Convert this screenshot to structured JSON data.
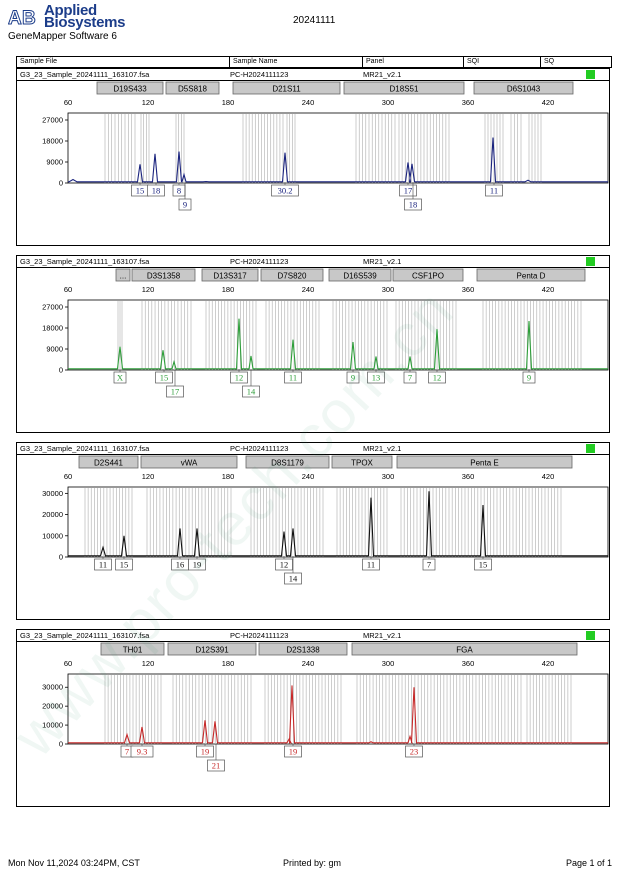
{
  "header": {
    "brand_line1": "Applied",
    "brand_line2": "Biosystems",
    "software": "GeneMapper Software 6",
    "date_title": "20241111",
    "columns": [
      "Sample File",
      "Sample Name",
      "Panel",
      "SQI",
      "SQ"
    ]
  },
  "footer": {
    "printed_at": "Mon Nov 11,2024 03:24PM, CST",
    "printed_by": "Printed by: gm",
    "page": "Page 1 of 1"
  },
  "watermark_text": "www.pro-tech.com.cn",
  "colors": {
    "blue": "#1a237e",
    "green": "#2e9e3a",
    "black": "#111111",
    "red": "#c62828",
    "sq": "#22cc22"
  },
  "panels": [
    {
      "sample_file": "G3_23_Sample_20241111_163107.fsa",
      "sample_name": "PC-H2024111123",
      "panel": "MR21_v2.1",
      "color": "blue",
      "loci": [
        {
          "name": "D19S433",
          "x0": 96,
          "x1": 162
        },
        {
          "name": "D5S818",
          "x0": 165,
          "x1": 218
        },
        {
          "name": "D21S11",
          "x0": 232,
          "x1": 339
        },
        {
          "name": "D18S51",
          "x0": 343,
          "x1": 463
        },
        {
          "name": "D6S1043",
          "x0": 473,
          "x1": 572
        }
      ],
      "x_ticks": [
        60,
        120,
        180,
        240,
        300,
        360,
        420
      ],
      "y_ticks": [
        "27000",
        "18000",
        "9000",
        "0"
      ],
      "y_max": 30000,
      "peaks": [
        {
          "x": 139,
          "h": 8000,
          "w": 2.5
        },
        {
          "x": 154,
          "h": 12500,
          "w": 2.5
        },
        {
          "x": 178,
          "h": 13500,
          "w": 2.5
        },
        {
          "x": 183,
          "h": 3600,
          "w": 2
        },
        {
          "x": 284,
          "h": 13000,
          "w": 2.5
        },
        {
          "x": 407,
          "h": 8800,
          "w": 2.5
        },
        {
          "x": 411,
          "h": 8200,
          "w": 2.5
        },
        {
          "x": 492,
          "h": 19500,
          "w": 2.5
        },
        {
          "x": 72,
          "h": 1500,
          "w": 4
        },
        {
          "x": 527,
          "h": 1200,
          "w": 3
        },
        {
          "x": 205,
          "h": 600,
          "w": 3
        }
      ],
      "labels": [
        {
          "text": "15",
          "x": 139,
          "row": 0
        },
        {
          "text": "18",
          "x": 155,
          "row": 0
        },
        {
          "text": "8",
          "x": 178,
          "row": 0
        },
        {
          "text": "9",
          "x": 184,
          "row": 1
        },
        {
          "text": "30.2",
          "x": 284,
          "row": 0
        },
        {
          "text": "17",
          "x": 407,
          "row": 0
        },
        {
          "text": "18",
          "x": 412,
          "row": 1
        },
        {
          "text": "11",
          "x": 493,
          "row": 0
        }
      ],
      "bins": [
        [
          104,
          134
        ],
        [
          140,
          148
        ],
        [
          175,
          183
        ],
        [
          242,
          282
        ],
        [
          286,
          294
        ],
        [
          355,
          394
        ],
        [
          398,
          448
        ],
        [
          484,
          502
        ],
        [
          510,
          520
        ],
        [
          528,
          540
        ]
      ]
    },
    {
      "sample_file": "G3_23_Sample_20241111_163107.fsa",
      "sample_name": "PC-H2024111123",
      "panel": "MR21_v2.1",
      "color": "green",
      "loci": [
        {
          "name": "...",
          "x0": 115,
          "x1": 129
        },
        {
          "name": "D3S1358",
          "x0": 131,
          "x1": 194
        },
        {
          "name": "D13S317",
          "x0": 201,
          "x1": 257
        },
        {
          "name": "D7S820",
          "x0": 260,
          "x1": 322
        },
        {
          "name": "D16S539",
          "x0": 328,
          "x1": 390
        },
        {
          "name": "CSF1PO",
          "x0": 392,
          "x1": 462
        },
        {
          "name": "Penta D",
          "x0": 476,
          "x1": 584
        }
      ],
      "x_ticks": [
        60,
        120,
        180,
        240,
        300,
        360,
        420
      ],
      "y_ticks": [
        "27000",
        "18000",
        "9000",
        "0"
      ],
      "y_max": 30000,
      "peaks": [
        {
          "x": 119,
          "h": 10000,
          "w": 2.5
        },
        {
          "x": 162,
          "h": 8500,
          "w": 2.5
        },
        {
          "x": 173,
          "h": 3500,
          "w": 2
        },
        {
          "x": 238,
          "h": 22000,
          "w": 2.5
        },
        {
          "x": 250,
          "h": 6000,
          "w": 2
        },
        {
          "x": 292,
          "h": 13000,
          "w": 2.5
        },
        {
          "x": 352,
          "h": 12000,
          "w": 2.5
        },
        {
          "x": 375,
          "h": 5800,
          "w": 2
        },
        {
          "x": 409,
          "h": 5800,
          "w": 2
        },
        {
          "x": 436,
          "h": 17500,
          "w": 2.5
        },
        {
          "x": 528,
          "h": 21000,
          "w": 2.5
        }
      ],
      "labels": [
        {
          "text": "X",
          "x": 119,
          "row": 0
        },
        {
          "text": "15",
          "x": 163,
          "row": 0
        },
        {
          "text": "17",
          "x": 174,
          "row": 1
        },
        {
          "text": "12",
          "x": 238,
          "row": 0
        },
        {
          "text": "14",
          "x": 250,
          "row": 1
        },
        {
          "text": "11",
          "x": 292,
          "row": 0
        },
        {
          "text": "9",
          "x": 352,
          "row": 0
        },
        {
          "text": "13",
          "x": 375,
          "row": 0
        },
        {
          "text": "7",
          "x": 409,
          "row": 0
        },
        {
          "text": "12",
          "x": 436,
          "row": 0
        },
        {
          "text": "9",
          "x": 528,
          "row": 0
        }
      ],
      "bins": [
        [
          117,
          121
        ],
        [
          141,
          190
        ],
        [
          205,
          255
        ],
        [
          265,
          318
        ],
        [
          332,
          386
        ],
        [
          395,
          455
        ],
        [
          482,
          580
        ]
      ]
    },
    {
      "sample_file": "G3_23_Sample_20241111_163107.fsa",
      "sample_name": "PC-H2024111123",
      "panel": "MR21_v2.1",
      "color": "black",
      "loci": [
        {
          "name": "D2S441",
          "x0": 78,
          "x1": 137
        },
        {
          "name": "vWA",
          "x0": 140,
          "x1": 236
        },
        {
          "name": "D8S1179",
          "x0": 245,
          "x1": 328
        },
        {
          "name": "TPOX",
          "x0": 331,
          "x1": 391
        },
        {
          "name": "Penta E",
          "x0": 396,
          "x1": 571
        }
      ],
      "x_ticks": [
        60,
        120,
        180,
        240,
        300,
        360,
        420
      ],
      "y_ticks": [
        "30000",
        "20000",
        "10000",
        "0"
      ],
      "y_max": 33000,
      "peaks": [
        {
          "x": 102,
          "h": 4500,
          "w": 2.5
        },
        {
          "x": 123,
          "h": 10000,
          "w": 2.5
        },
        {
          "x": 179,
          "h": 13500,
          "w": 2.5
        },
        {
          "x": 196,
          "h": 13500,
          "w": 2.5
        },
        {
          "x": 283,
          "h": 12000,
          "w": 2.5
        },
        {
          "x": 292,
          "h": 13500,
          "w": 2.5
        },
        {
          "x": 370,
          "h": 28000,
          "w": 2.5
        },
        {
          "x": 428,
          "h": 31000,
          "w": 2.5
        },
        {
          "x": 482,
          "h": 24500,
          "w": 2.5
        }
      ],
      "labels": [
        {
          "text": "11",
          "x": 102,
          "row": 0
        },
        {
          "text": "15",
          "x": 123,
          "row": 0
        },
        {
          "text": "16",
          "x": 179,
          "row": 0
        },
        {
          "text": "19",
          "x": 196,
          "row": 0
        },
        {
          "text": "12",
          "x": 283,
          "row": 0
        },
        {
          "text": "14",
          "x": 292,
          "row": 1
        },
        {
          "text": "11",
          "x": 370,
          "row": 0
        },
        {
          "text": "7",
          "x": 428,
          "row": 0
        },
        {
          "text": "15",
          "x": 482,
          "row": 0
        }
      ],
      "bins": [
        [
          84,
          131
        ],
        [
          146,
          230
        ],
        [
          250,
          322
        ],
        [
          336,
          386
        ],
        [
          400,
          560
        ]
      ]
    },
    {
      "sample_file": "G3_23_Sample_20241111_163107.fsa",
      "sample_name": "PC-H2024111123",
      "panel": "MR21_v2.1",
      "color": "red",
      "loci": [
        {
          "name": "TH01",
          "x0": 100,
          "x1": 163
        },
        {
          "name": "D12S391",
          "x0": 167,
          "x1": 255
        },
        {
          "name": "D2S1338",
          "x0": 258,
          "x1": 346
        },
        {
          "name": "FGA",
          "x0": 351,
          "x1": 576
        }
      ],
      "x_ticks": [
        60,
        120,
        180,
        240,
        300,
        360,
        420
      ],
      "y_ticks": [
        "30000",
        "20000",
        "10000",
        "0"
      ],
      "y_max": 37000,
      "peaks": [
        {
          "x": 126,
          "h": 5000,
          "w": 2.5
        },
        {
          "x": 141,
          "h": 9000,
          "w": 2.5
        },
        {
          "x": 204,
          "h": 12500,
          "w": 2.5
        },
        {
          "x": 214,
          "h": 12000,
          "w": 2.5
        },
        {
          "x": 291,
          "h": 31000,
          "w": 2.5
        },
        {
          "x": 288,
          "h": 2500,
          "w": 2
        },
        {
          "x": 413,
          "h": 30000,
          "w": 2.5
        },
        {
          "x": 409,
          "h": 4000,
          "w": 2
        },
        {
          "x": 370,
          "h": 1200,
          "w": 2
        }
      ],
      "labels": [
        {
          "text": "7",
          "x": 126,
          "row": 0
        },
        {
          "text": "9.3",
          "x": 141,
          "row": 0
        },
        {
          "text": "19",
          "x": 204,
          "row": 0
        },
        {
          "text": "21",
          "x": 215,
          "row": 1
        },
        {
          "text": "19",
          "x": 292,
          "row": 0
        },
        {
          "text": "23",
          "x": 413,
          "row": 0
        }
      ],
      "bins": [
        [
          104,
          160
        ],
        [
          172,
          250
        ],
        [
          264,
          340
        ],
        [
          356,
          520
        ],
        [
          526,
          570
        ]
      ]
    }
  ]
}
